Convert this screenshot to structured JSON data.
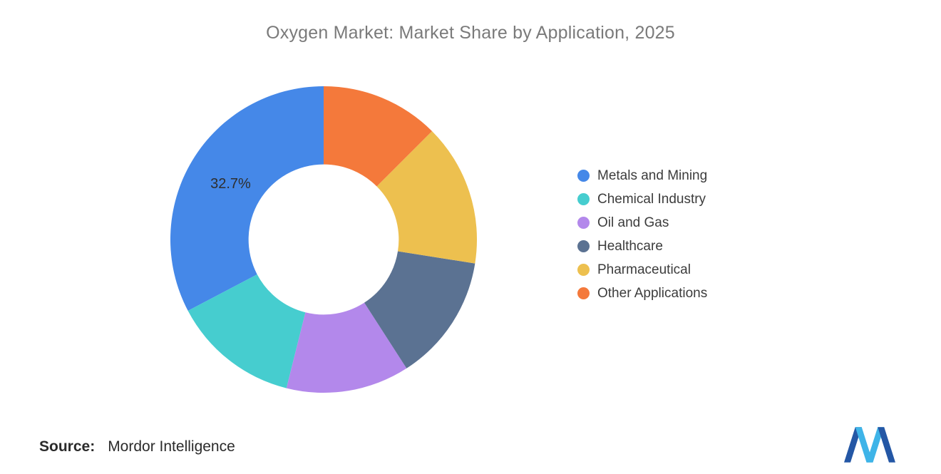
{
  "chart_data": {
    "type": "pie",
    "subtype": "donut",
    "title": "Oxygen Market: Market Share by Application, 2025",
    "unit": "%",
    "start_angle_deg": 0,
    "direction": "counterclockwise",
    "inner_radius_ratio": 0.49,
    "legend_position": "right",
    "series": [
      {
        "name": "Metals and Mining",
        "value": 32.7,
        "color": "#4588E8",
        "label": "32.7%"
      },
      {
        "name": "Chemical Industry",
        "value": 13.4,
        "color": "#46CDCF",
        "label": ""
      },
      {
        "name": "Oil and Gas",
        "value": 13.0,
        "color": "#B388EB",
        "label": ""
      },
      {
        "name": "Healthcare",
        "value": 13.4,
        "color": "#5B7292",
        "label": ""
      },
      {
        "name": "Pharmaceutical",
        "value": 15.0,
        "color": "#EDC04F",
        "label": ""
      },
      {
        "name": "Other Applications",
        "value": 12.5,
        "color": "#F4793B",
        "label": ""
      }
    ]
  },
  "footer": {
    "source_label": "Source:",
    "source_value": "Mordor Intelligence"
  },
  "logo": {
    "name": "mordor-intelligence-logo",
    "colors": [
      "#2457A5",
      "#3EB4E8"
    ]
  }
}
